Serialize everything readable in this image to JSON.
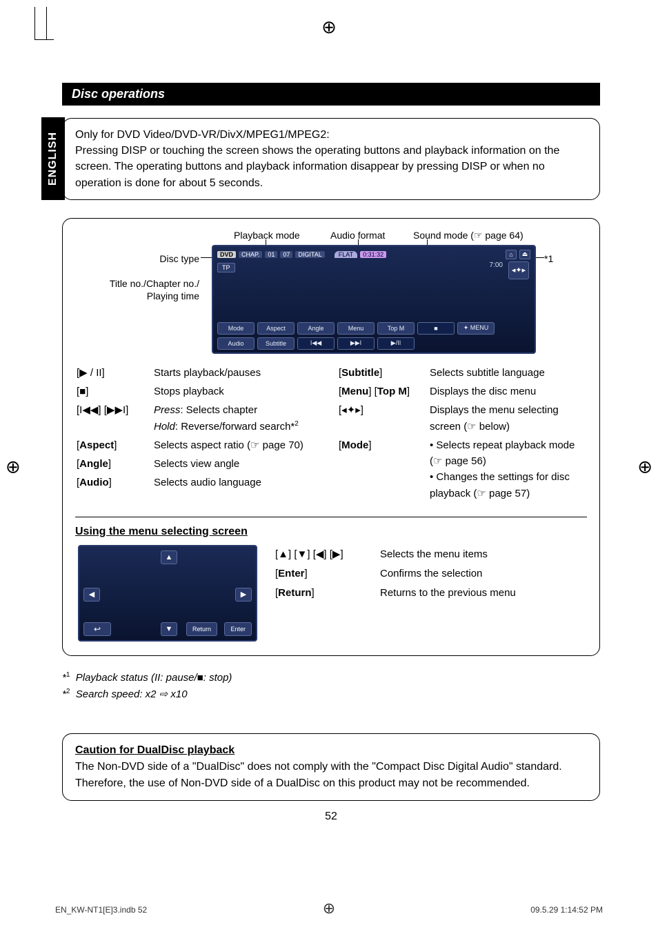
{
  "registration_glyph": "⊕",
  "sidebar_label": "ENGLISH",
  "header": "Disc operations",
  "intro": {
    "line1": "Only for DVD Video/DVD-VR/DivX/MPEG1/MPEG2:",
    "line2": "Pressing DISP or touching the screen shows the operating buttons and playback information on the screen. The operating buttons and playback information disappear by pressing DISP or when no operation is done for about 5 seconds."
  },
  "labels": {
    "playback_mode": "Playback mode",
    "audio_format": "Audio format",
    "sound_mode": "Sound mode (☞ page 64)",
    "disc_type": "Disc type",
    "title_chapter": "Title no./Chapter no./",
    "playing_time": "Playing time",
    "star1": "*1"
  },
  "screenshot": {
    "dvd": "DVD",
    "chap": "CHAP.",
    "seg1": "01",
    "seg2": "07",
    "digital": "DIGITAL",
    "flat": "FLAT",
    "elapsed": "0:31:32",
    "clock": "7:00",
    "tp": "TP",
    "eject": "⏏",
    "nav": "◂✦▸",
    "buttons_row1": [
      "Mode",
      "Aspect",
      "Angle",
      "Menu",
      "Top M",
      "■"
    ],
    "buttons_row2": [
      "✦ MENU",
      "Audio",
      "Subtitle",
      "I◀◀",
      "▶▶I",
      "▶/II"
    ]
  },
  "controls_left": [
    {
      "key": "[▶ / II]",
      "desc": "Starts playback/pauses"
    },
    {
      "key": "[■]",
      "desc": "Stops playback"
    },
    {
      "key": "[I◀◀] [▶▶I]",
      "desc_html": "<span class='i'>Press</span>: Selects chapter<br><span class='i'>Hold</span>: Reverse/forward search*<span class='sup'>2</span>"
    },
    {
      "key": "[<span class='b'>Aspect</span>]",
      "desc": "Selects aspect ratio (☞ page 70)"
    },
    {
      "key": "[<span class='b'>Angle</span>]",
      "desc": "Selects view angle"
    },
    {
      "key": "[<span class='b'>Audio</span>]",
      "desc": "Selects audio language"
    }
  ],
  "controls_right": [
    {
      "key": "[<span class='b'>Subtitle</span>]",
      "desc": "Selects subtitle language"
    },
    {
      "key": "[<span class='b'>Menu</span>] [<span class='b'>Top M</span>]",
      "desc": "Displays the disc menu"
    },
    {
      "key": "[◂✦▸]",
      "desc": "Displays the menu selecting screen (☞ below)"
    },
    {
      "key": "[<span class='b'>Mode</span>]",
      "desc": "• Selects repeat playback mode (☞ page 56)<br>• Changes the settings for disc playback (☞ page 57)"
    }
  ],
  "menu_section_title": "Using the menu selecting screen",
  "menu_screen": {
    "up": "▲",
    "down": "▼",
    "left": "◀",
    "right": "▶",
    "back": "↩",
    "return": "Return",
    "enter": "Enter"
  },
  "menu_desc": [
    {
      "key": "[▲] [▼] [◀] [▶]",
      "desc": "Selects the menu items"
    },
    {
      "key": "[<span class='b'>Enter</span>]",
      "desc": "Confirms the selection"
    },
    {
      "key": "[<span class='b'>Return</span>]",
      "desc": "Returns to the previous menu"
    }
  ],
  "footnotes": {
    "f1_pre": "*",
    "f1_sup": "1",
    "f1_text": "Playback status (II: pause/■: stop)",
    "f2_pre": "*",
    "f2_sup": "2",
    "f2_text": "Search speed: x2 ⇨ x10"
  },
  "caution": {
    "title": "Caution for DualDisc playback",
    "body": "The Non-DVD side of a \"DualDisc\" does not comply with the \"Compact Disc Digital Audio\" standard. Therefore, the use of Non-DVD side of a DualDisc on this product may not be recommended."
  },
  "page_number": "52",
  "footer": {
    "left": "EN_KW-NT1[E]3.indb   52",
    "right": "09.5.29   1:14:52 PM"
  }
}
